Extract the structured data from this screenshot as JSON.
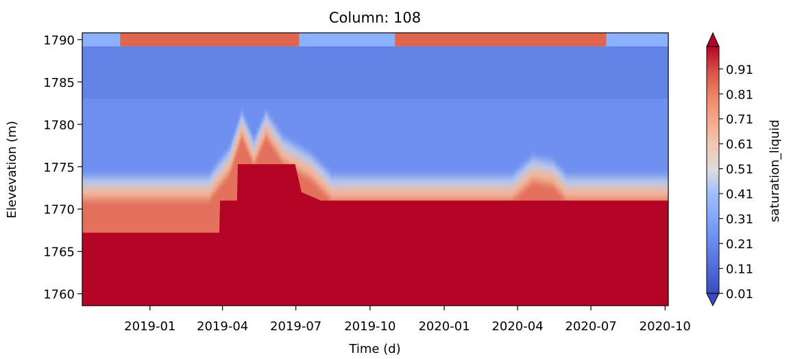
{
  "chart_data": {
    "type": "heatmap",
    "title": "Column: 108",
    "xlabel": "Time (d)",
    "ylabel": "Elevevation (m)",
    "x_tick_labels": [
      "2019-01",
      "2019-04",
      "2019-07",
      "2019-10",
      "2020-01",
      "2020-04",
      "2020-07",
      "2020-10"
    ],
    "x_ticks": [
      "2019-01-01",
      "2019-04-01",
      "2019-07-01",
      "2019-10-01",
      "2020-01-01",
      "2020-04-01",
      "2020-07-01",
      "2020-10-01"
    ],
    "xlim": [
      "2018-10-09",
      "2020-10-05"
    ],
    "y_ticks": [
      1760,
      1765,
      1770,
      1775,
      1780,
      1785,
      1790
    ],
    "ylim": [
      1758.6,
      1790.8
    ],
    "colorbar": {
      "label": "saturation_liquid",
      "colormap": "coolwarm",
      "min": 0.01,
      "max": 1.0,
      "extend": "both",
      "tick_labels": [
        "0.01",
        "0.11",
        "0.21",
        "0.31",
        "0.41",
        "0.51",
        "0.61",
        "0.71",
        "0.81",
        "0.91"
      ]
    },
    "layers": {
      "surface_top": 1790.8,
      "surface_layer_bottom": 1789.2,
      "saturated_zone_top": [
        {
          "date": "2018-10-09",
          "elevation": 1767.2
        },
        {
          "date": "2019-03-28",
          "elevation": 1767.2
        },
        {
          "date": "2019-03-29",
          "elevation": 1771.0
        },
        {
          "date": "2019-04-19",
          "elevation": 1771.0
        },
        {
          "date": "2019-04-20",
          "elevation": 1775.3
        },
        {
          "date": "2019-06-30",
          "elevation": 1775.3
        },
        {
          "date": "2019-07-08",
          "elevation": 1772.0
        },
        {
          "date": "2019-08-01",
          "elevation": 1771.0
        },
        {
          "date": "2020-03-31",
          "elevation": 1771.0
        },
        {
          "date": "2020-10-05",
          "elevation": 1771.0
        }
      ],
      "wetting_front_top": [
        {
          "date": "2018-10-09",
          "elevation": 1773.8
        },
        {
          "date": "2019-03-15",
          "elevation": 1773.8
        },
        {
          "date": "2019-04-10",
          "elevation": 1777.0
        },
        {
          "date": "2019-04-25",
          "elevation": 1781.3
        },
        {
          "date": "2019-05-10",
          "elevation": 1778.0
        },
        {
          "date": "2019-05-25",
          "elevation": 1781.3
        },
        {
          "date": "2019-06-15",
          "elevation": 1778.3
        },
        {
          "date": "2019-07-20",
          "elevation": 1776.3
        },
        {
          "date": "2019-08-15",
          "elevation": 1773.8
        },
        {
          "date": "2020-03-25",
          "elevation": 1773.8
        },
        {
          "date": "2020-04-20",
          "elevation": 1776.0
        },
        {
          "date": "2020-05-15",
          "elevation": 1775.5
        },
        {
          "date": "2020-06-01",
          "elevation": 1773.8
        },
        {
          "date": "2020-10-05",
          "elevation": 1773.8
        }
      ],
      "surface_saturated_periods": [
        {
          "start": "2018-11-25",
          "end": "2019-07-05",
          "peak": 0.95
        },
        {
          "start": "2019-11-01",
          "end": "2020-07-20",
          "peak": 0.95
        }
      ]
    }
  }
}
